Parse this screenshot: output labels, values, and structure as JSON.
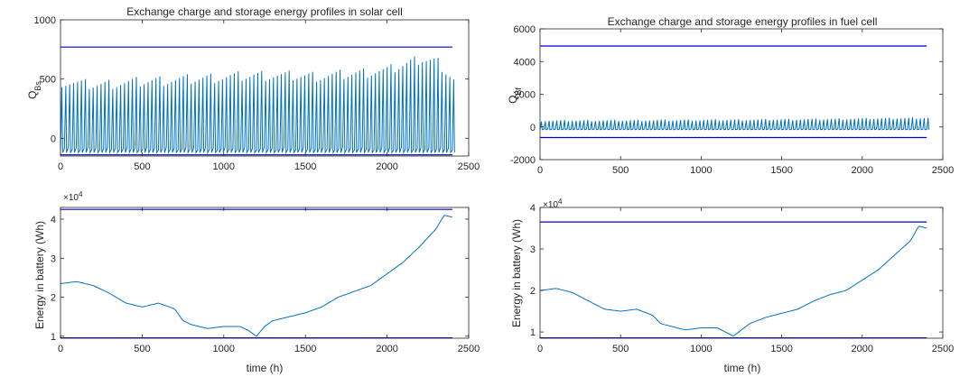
{
  "figure": {
    "background": "#ffffff",
    "axis_color": "#262626",
    "data_color": "#0072BD",
    "limit_color": "#0000CC"
  },
  "chart_data": [
    {
      "type": "line",
      "title": "Exchange charge and storage energy profiles in solar cell",
      "xlabel": "",
      "ylabel": "Q",
      "ylabel_sub": "Bs",
      "xlim": [
        0,
        2500
      ],
      "ylim": [
        -150,
        1000
      ],
      "xticks": [
        0,
        500,
        1000,
        1500,
        2000,
        2500
      ],
      "yticks": [
        0,
        500,
        1000
      ],
      "exponent": "",
      "grid": false,
      "signal": {
        "period": 24,
        "start": 0,
        "end": 2400,
        "base": -100,
        "peak_x": [
          0,
          200,
          500,
          800,
          1200,
          1600,
          2000,
          2200,
          2300,
          2400
        ],
        "peak_y": [
          480,
          450,
          480,
          500,
          530,
          520,
          570,
          670,
          650,
          500
        ]
      },
      "limits": [
        {
          "y": 770,
          "x": [
            0,
            2400
          ]
        },
        {
          "y": -140,
          "x": [
            0,
            2400
          ]
        }
      ]
    },
    {
      "type": "line",
      "title": "Exchange charge and storage energy profiles in fuel cell",
      "xlabel": "",
      "ylabel": "Q",
      "ylabel_sub": "Bf",
      "xlim": [
        0,
        2500
      ],
      "ylim": [
        -2000,
        6000
      ],
      "xticks": [
        0,
        500,
        1000,
        1500,
        2000,
        2500
      ],
      "yticks": [
        -2000,
        0,
        2000,
        4000,
        6000
      ],
      "exponent": "",
      "grid": false,
      "signal": {
        "period": 24,
        "start": 0,
        "end": 2400,
        "base": -150,
        "peak_x": [
          0,
          500,
          1000,
          1500,
          2000,
          2400
        ],
        "peak_y": [
          380,
          400,
          420,
          450,
          500,
          560
        ]
      },
      "limits": [
        {
          "y": 4950,
          "x": [
            0,
            2400
          ]
        },
        {
          "y": -650,
          "x": [
            0,
            2400
          ]
        }
      ]
    },
    {
      "type": "line",
      "title": "",
      "xlabel": "time (h)",
      "ylabel": "Energy in battery (Wh)",
      "ylabel_sub": "",
      "xlim": [
        0,
        2500
      ],
      "ylim": [
        9500,
        43000
      ],
      "xticks": [
        0,
        500,
        1000,
        1500,
        2000,
        2500
      ],
      "yticks": [
        10000,
        20000,
        30000,
        40000
      ],
      "ytick_labels": [
        "1",
        "2",
        "3",
        "4"
      ],
      "exponent": "4",
      "grid": false,
      "x": [
        0,
        100,
        200,
        300,
        400,
        500,
        600,
        700,
        750,
        800,
        900,
        1000,
        1100,
        1150,
        1200,
        1250,
        1300,
        1400,
        1500,
        1600,
        1700,
        1800,
        1900,
        2000,
        2100,
        2200,
        2300,
        2350,
        2400
      ],
      "y": [
        23500,
        24000,
        23000,
        21000,
        18500,
        17500,
        18500,
        17000,
        14000,
        13000,
        12000,
        12500,
        12500,
        11500,
        10000,
        12500,
        14000,
        15000,
        16000,
        17500,
        20000,
        21500,
        23000,
        26000,
        29000,
        33000,
        37500,
        41000,
        40500
      ],
      "ripple": 900,
      "limits": [
        {
          "y": 42500,
          "x": [
            0,
            2400
          ]
        },
        {
          "y": 9600,
          "x": [
            0,
            2400
          ]
        }
      ]
    },
    {
      "type": "line",
      "title": "",
      "xlabel": "time (h)",
      "ylabel": "Energy in battery (Wh)",
      "ylabel_sub": "",
      "xlim": [
        0,
        2500
      ],
      "ylim": [
        8500,
        40000
      ],
      "xticks": [
        0,
        500,
        1000,
        1500,
        2000,
        2500
      ],
      "yticks": [
        10000,
        20000,
        30000,
        40000
      ],
      "ytick_labels": [
        "1",
        "2",
        "3",
        "4"
      ],
      "exponent": "4",
      "grid": false,
      "x": [
        0,
        100,
        200,
        300,
        400,
        500,
        600,
        700,
        750,
        800,
        900,
        1000,
        1100,
        1150,
        1200,
        1250,
        1300,
        1400,
        1500,
        1600,
        1700,
        1800,
        1900,
        2000,
        2100,
        2200,
        2300,
        2350,
        2400
      ],
      "y": [
        20000,
        20500,
        19500,
        17500,
        15500,
        15000,
        15500,
        14000,
        12000,
        11500,
        10500,
        11000,
        11000,
        10000,
        9000,
        10500,
        12000,
        13500,
        14500,
        15500,
        17500,
        19000,
        20000,
        22500,
        25000,
        28500,
        32000,
        35500,
        35000
      ],
      "ripple": 800,
      "limits": [
        {
          "y": 36500,
          "x": [
            0,
            2400
          ]
        },
        {
          "y": 8600,
          "x": [
            0,
            2400
          ]
        }
      ]
    }
  ]
}
